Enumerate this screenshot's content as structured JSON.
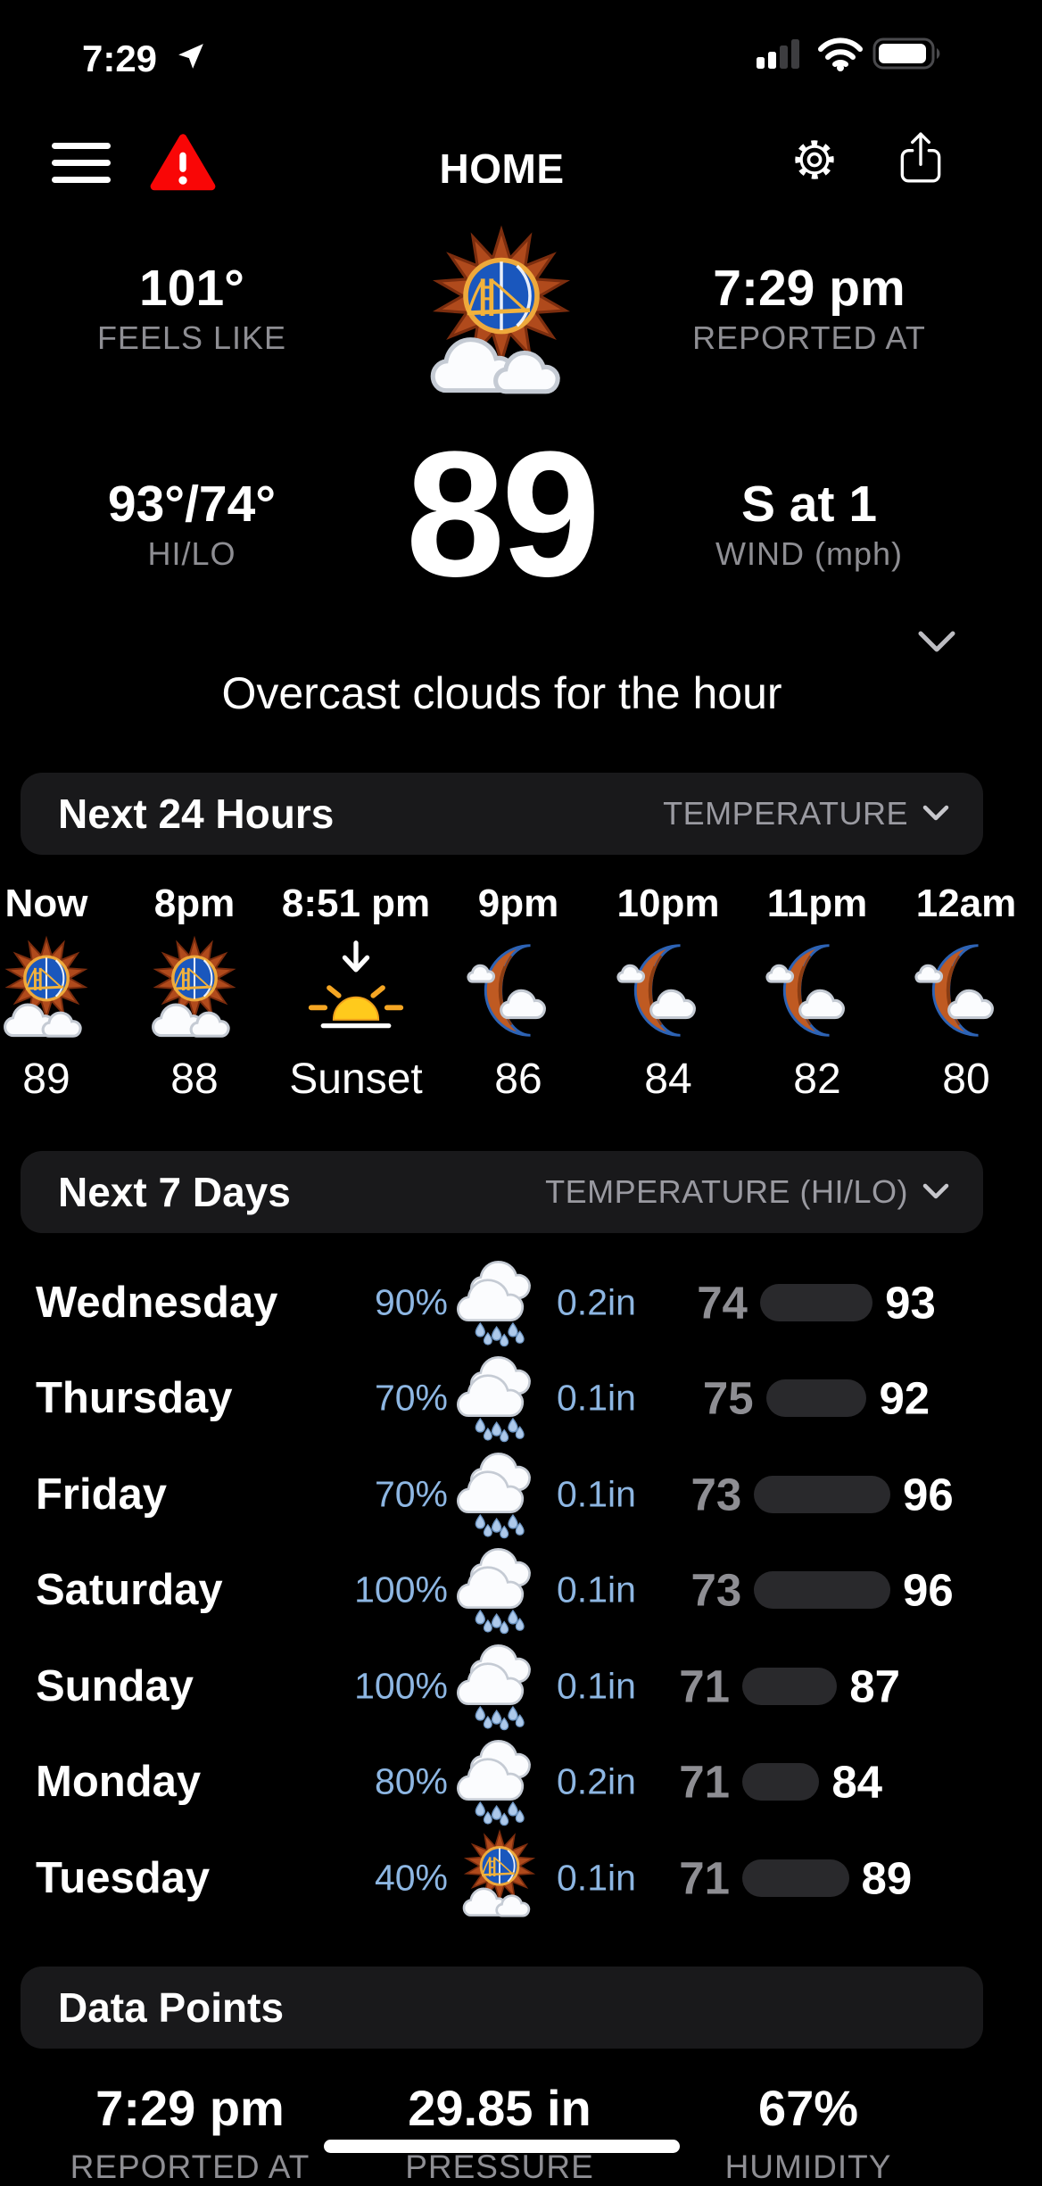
{
  "status_bar": {
    "time": "7:29",
    "icons": [
      "location-arrow-icon",
      "signal-bars-icon",
      "wifi-icon",
      "battery-icon"
    ]
  },
  "header": {
    "title": "HOME",
    "icons": [
      "hamburger-menu-icon",
      "alert-triangle-icon",
      "gear-icon",
      "share-icon"
    ]
  },
  "current": {
    "feels_like_value": "101°",
    "feels_like_label": "FEELS LIKE",
    "reported_value": "7:29 pm",
    "reported_label": "REPORTED AT",
    "hilo_value": "93°/74°",
    "hilo_label": "HI/LO",
    "temperature": "89",
    "wind_value": "S at 1",
    "wind_label": "WIND (mph)",
    "summary": "Overcast clouds for the hour",
    "icon": "warriors-sun-clouds"
  },
  "hourly": {
    "title": "Next 24 Hours",
    "metric": "TEMPERATURE",
    "items": [
      {
        "time": "Now",
        "icon": "warriors-sun-clouds",
        "value": "89"
      },
      {
        "time": "8pm",
        "icon": "warriors-sun-clouds",
        "value": "88"
      },
      {
        "time": "8:51 pm",
        "icon": "sunset",
        "value": "Sunset"
      },
      {
        "time": "9pm",
        "icon": "warriors-moon-cloud",
        "value": "86"
      },
      {
        "time": "10pm",
        "icon": "warriors-moon-cloud",
        "value": "84"
      },
      {
        "time": "11pm",
        "icon": "warriors-moon-cloud",
        "value": "82"
      },
      {
        "time": "12am",
        "icon": "warriors-moon-cloud",
        "value": "80"
      }
    ]
  },
  "daily": {
    "title": "Next 7 Days",
    "metric": "TEMPERATURE (HI/LO)",
    "temp_scale": {
      "min": 71,
      "max": 96
    },
    "rows": [
      {
        "day": "Wednesday",
        "precip": "90%",
        "icon": "rain-clouds",
        "amount": "0.2in",
        "low": 74,
        "high": 93
      },
      {
        "day": "Thursday",
        "precip": "70%",
        "icon": "rain-clouds",
        "amount": "0.1in",
        "low": 75,
        "high": 92
      },
      {
        "day": "Friday",
        "precip": "70%",
        "icon": "rain-clouds",
        "amount": "0.1in",
        "low": 73,
        "high": 96
      },
      {
        "day": "Saturday",
        "precip": "100%",
        "icon": "rain-clouds",
        "amount": "0.1in",
        "low": 73,
        "high": 96
      },
      {
        "day": "Sunday",
        "precip": "100%",
        "icon": "rain-clouds",
        "amount": "0.1in",
        "low": 71,
        "high": 87
      },
      {
        "day": "Monday",
        "precip": "80%",
        "icon": "rain-clouds",
        "amount": "0.2in",
        "low": 71,
        "high": 84
      },
      {
        "day": "Tuesday",
        "precip": "40%",
        "icon": "warriors-sun-clouds",
        "amount": "0.1in",
        "low": 71,
        "high": 89
      }
    ]
  },
  "data_points": {
    "title": "Data Points",
    "items": [
      {
        "value": "7:29 pm",
        "label": "REPORTED AT"
      },
      {
        "value": "29.85 in",
        "label": "PRESSURE"
      },
      {
        "value": "67%",
        "label": "HUMIDITY"
      }
    ]
  },
  "colors": {
    "accent_blue": "#8db6e2",
    "label_gray": "#8e8e93",
    "alert_red": "#f90606",
    "bar_pill": "#29292c",
    "section_bg": "#19191b"
  }
}
